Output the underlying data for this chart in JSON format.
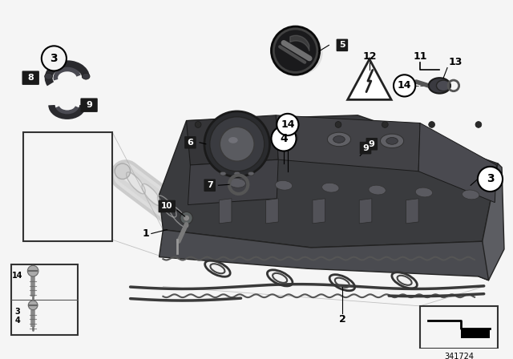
{
  "bg_color": "#f5f5f5",
  "ref_number": "341724",
  "line_color": "#000000",
  "part_label_color": "#000000",
  "engine_dark": "#3a3b3e",
  "engine_mid": "#4a4b50",
  "engine_light": "#5c5d62",
  "engine_highlight": "#6a6b70",
  "white": "#ffffff",
  "gray_light": "#cccccc",
  "gray_mid": "#888888",
  "gray_dark": "#444444",
  "pipe_color": "#d8d8d8",
  "gasket_color": "#555555",
  "cap_dark": "#2a2a2a",
  "cap_mid": "#4a4a4a",
  "label_bg": "#1a1a1a",
  "label_fg": "#ffffff"
}
